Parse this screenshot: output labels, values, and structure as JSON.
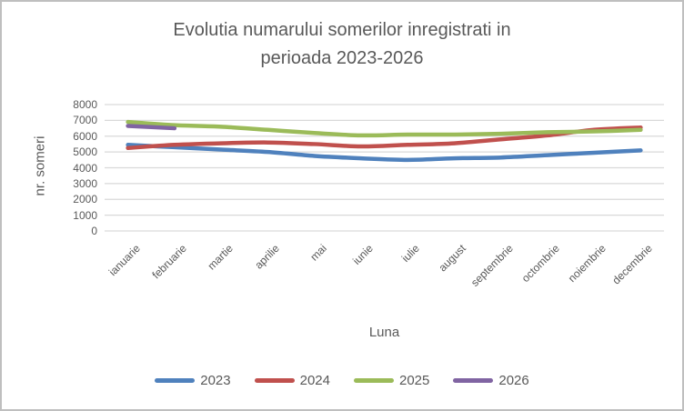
{
  "title": {
    "line1": "Evolutia numarului somerilor inregistrati in",
    "line2": "perioada 2023-2026"
  },
  "chart_data": {
    "type": "line",
    "title": "Evolutia numarului somerilor inregistrati in perioada 2023-2026",
    "xlabel": "Luna",
    "ylabel": "nr. someri",
    "ylim": [
      0,
      8000
    ],
    "y_ticks": [
      0,
      1000,
      2000,
      3000,
      4000,
      5000,
      6000,
      7000,
      8000
    ],
    "grid": true,
    "smooth": true,
    "legend_position": "bottom",
    "categories": [
      "ianuarie",
      "februarie",
      "martie",
      "aprilie",
      "mai",
      "iunie",
      "iulie",
      "august",
      "septembrie",
      "octombrie",
      "noiembrie",
      "decembrie"
    ],
    "series": [
      {
        "name": "2023",
        "color": "#4F81BD",
        "values": [
          5450,
          5300,
          5150,
          5000,
          4750,
          4600,
          4500,
          4600,
          4650,
          4800,
          4950,
          5100
        ]
      },
      {
        "name": "2024",
        "color": "#C0504D",
        "values": [
          5250,
          5450,
          5550,
          5600,
          5500,
          5350,
          5450,
          5550,
          5800,
          6050,
          6400,
          6550
        ]
      },
      {
        "name": "2025",
        "color": "#9BBB59",
        "values": [
          6900,
          6700,
          6600,
          6400,
          6200,
          6050,
          6100,
          6100,
          6150,
          6250,
          6300,
          6400
        ]
      },
      {
        "name": "2026",
        "color": "#8064A2",
        "values": [
          6650,
          6500
        ]
      }
    ]
  },
  "colors": {
    "grid": "#D9D9D9",
    "text": "#595959",
    "background": "#FFFFFF",
    "frame_border": "#BFBFBF"
  }
}
